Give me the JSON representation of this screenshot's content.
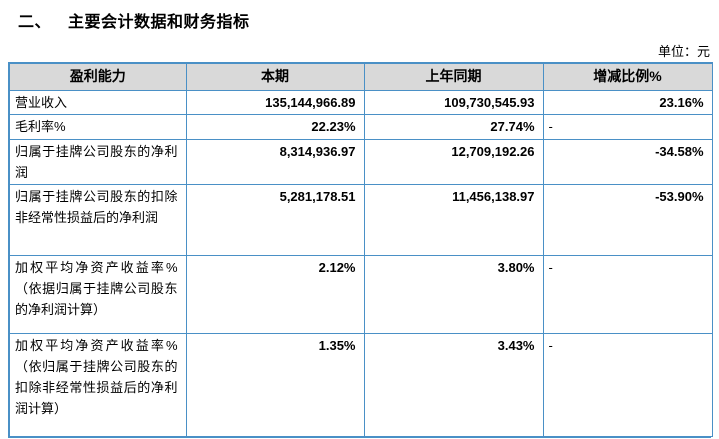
{
  "page": {
    "section_number": "二、",
    "section_title": "主要会计数据和财务指标",
    "unit_label": "单位：元"
  },
  "colors": {
    "table_border": "#4a90c6",
    "header_background": "#d9d9d9",
    "text": "#000000"
  },
  "table": {
    "headers": [
      "盈利能力",
      "本期",
      "上年同期",
      "增减比例%"
    ],
    "rows": [
      {
        "label": "营业收入",
        "current": "135,144,966.89",
        "prior": "109,730,545.93",
        "change": "23.16%"
      },
      {
        "label": "毛利率%",
        "current": "22.23%",
        "prior": "27.74%",
        "change": "-"
      },
      {
        "label": "归属于挂牌公司股东的净利润",
        "current": "8,314,936.97",
        "prior": "12,709,192.26",
        "change": "-34.58%"
      },
      {
        "label": "归属于挂牌公司股东的扣除非经常性损益后的净利润",
        "current": "5,281,178.51",
        "prior": "11,456,138.97",
        "change": "-53.90%"
      },
      {
        "label": "加权平均净资产收益率%（依据归属于挂牌公司股东的净利润计算）",
        "current": "2.12%",
        "prior": "3.80%",
        "change": "-"
      },
      {
        "label": "加权平均净资产收益率%（依归属于挂牌公司股东的扣除非经常性损益后的净利润计算）",
        "current": "1.35%",
        "prior": "3.43%",
        "change": "-"
      }
    ]
  }
}
